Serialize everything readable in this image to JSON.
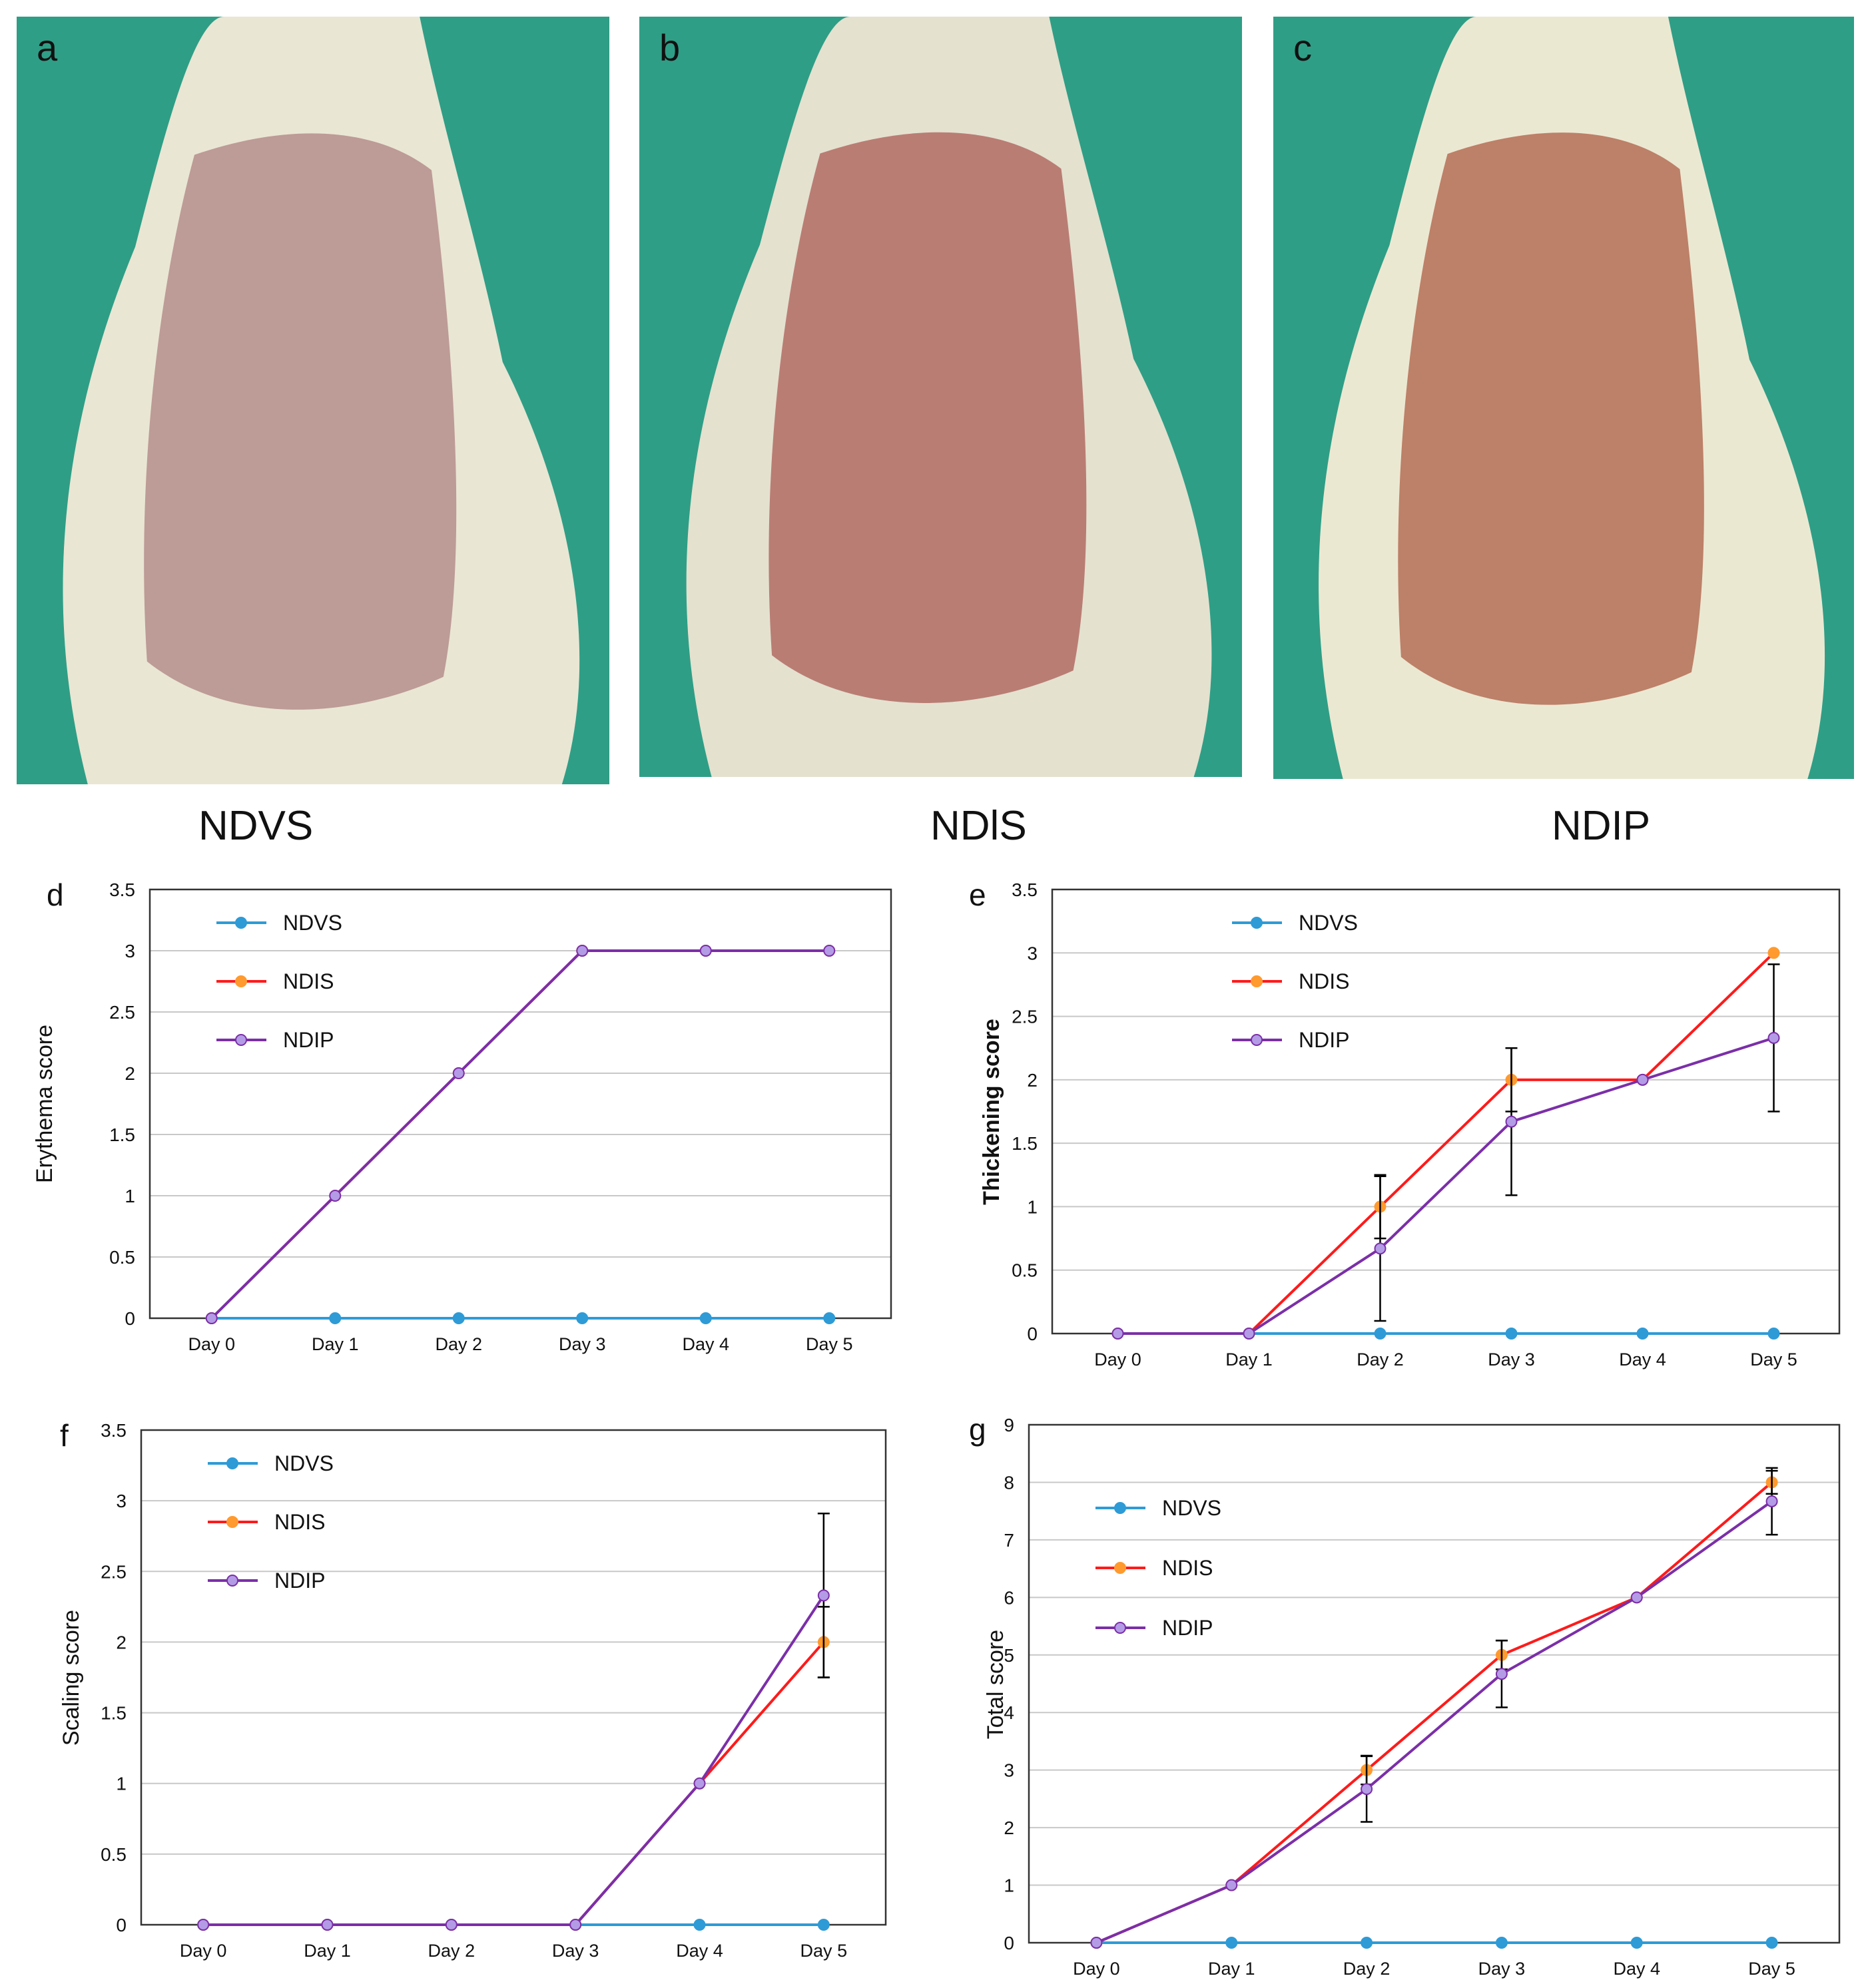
{
  "photos": [
    {
      "letter": "a",
      "fur": "#e9e6d4",
      "skin": "#b99590",
      "bg": "#2f9e86"
    },
    {
      "letter": "b",
      "fur": "#e4e1cf",
      "skin": "#b5746d",
      "bg": "#2f9e86"
    },
    {
      "letter": "c",
      "fur": "#ebe8d2",
      "skin": "#b8765e",
      "bg": "#2f9e86"
    }
  ],
  "group_labels": [
    "NDVS",
    "NDlS",
    "NDIP"
  ],
  "colors": {
    "ndvs": "#2e9bd6",
    "ndis_line": "#ff1a1a",
    "ndis_marker": "#ff9a2e",
    "ndip": "#7b2fa8",
    "ndip_marker": "#b49be6",
    "grid": "#c8c8c8",
    "axis": "#000000"
  },
  "chart_data": [
    {
      "panel": "d",
      "type": "line",
      "ylabel": "Erythema score",
      "ylim": [
        0,
        3.5
      ],
      "yticks": [
        "0",
        "0.5",
        "1",
        "1.5",
        "2",
        "2.5",
        "3",
        "3.5"
      ],
      "categories": [
        "Day 0",
        "Day 1",
        "Day 2",
        "Day 3",
        "Day 4",
        "Day 5"
      ],
      "legend": "top-left",
      "series": [
        {
          "name": "NDVS",
          "values": [
            0,
            0,
            0,
            0,
            0,
            0
          ],
          "err": [
            0,
            0,
            0,
            0,
            0,
            0
          ]
        },
        {
          "name": "NDIS",
          "values": [
            0,
            1,
            2,
            3,
            3,
            3
          ],
          "err": [
            0,
            0,
            0,
            0,
            0,
            0
          ]
        },
        {
          "name": "NDIP",
          "values": [
            0,
            1,
            2,
            3,
            3,
            3
          ],
          "err": [
            0,
            0,
            0,
            0,
            0,
            0
          ]
        }
      ]
    },
    {
      "panel": "e",
      "type": "line",
      "ylabel": "Thickening score",
      "ylim": [
        0,
        3.5
      ],
      "yticks": [
        "0",
        "0.5",
        "1",
        "1.5",
        "2",
        "2.5",
        "3",
        "3.5"
      ],
      "categories": [
        "Day 0",
        "Day 1",
        "Day 2",
        "Day 3",
        "Day 4",
        "Day 5"
      ],
      "legend": "top-left",
      "series": [
        {
          "name": "NDVS",
          "values": [
            0,
            0,
            0,
            0,
            0,
            0
          ],
          "err": [
            0,
            0,
            0,
            0,
            0,
            0
          ]
        },
        {
          "name": "NDIS",
          "values": [
            0,
            0,
            1,
            2,
            2,
            3
          ],
          "err": [
            0,
            0,
            0.25,
            0.25,
            0,
            0
          ]
        },
        {
          "name": "NDIP",
          "values": [
            0,
            0,
            0.67,
            1.67,
            2,
            2.33
          ],
          "err": [
            0,
            0,
            0.57,
            0.58,
            0,
            0.58
          ]
        }
      ]
    },
    {
      "panel": "f",
      "type": "line",
      "ylabel": "Scaling score",
      "ylim": [
        0,
        3.5
      ],
      "yticks": [
        "0",
        "0.5",
        "1",
        "1.5",
        "2",
        "2.5",
        "3",
        "3.5"
      ],
      "categories": [
        "Day 0",
        "Day 1",
        "Day 2",
        "Day 3",
        "Day 4",
        "Day 5"
      ],
      "legend": "top-left",
      "series": [
        {
          "name": "NDVS",
          "values": [
            0,
            0,
            0,
            0,
            0,
            0
          ],
          "err": [
            0,
            0,
            0,
            0,
            0,
            0
          ]
        },
        {
          "name": "NDIS",
          "values": [
            0,
            0,
            0,
            0,
            1,
            2
          ],
          "err": [
            0,
            0,
            0,
            0,
            0,
            0.25
          ]
        },
        {
          "name": "NDIP",
          "values": [
            0,
            0,
            0,
            0,
            1,
            2.33
          ],
          "err": [
            0,
            0,
            0,
            0,
            0,
            0.58
          ]
        }
      ]
    },
    {
      "panel": "g",
      "type": "line",
      "ylabel": "Total score",
      "ylim": [
        0,
        9
      ],
      "yticks": [
        "0",
        "1",
        "2",
        "3",
        "4",
        "5",
        "6",
        "7",
        "8",
        "9"
      ],
      "categories": [
        "Day 0",
        "Day 1",
        "Day 2",
        "Day 3",
        "Day 4",
        "Day 5"
      ],
      "legend": "top-left",
      "series": [
        {
          "name": "NDVS",
          "values": [
            0,
            0,
            0,
            0,
            0,
            0
          ],
          "err": [
            0,
            0,
            0,
            0,
            0,
            0
          ]
        },
        {
          "name": "NDIS",
          "values": [
            0,
            1,
            3,
            5,
            6,
            8
          ],
          "err": [
            0,
            0,
            0.25,
            0.25,
            0,
            0.2
          ]
        },
        {
          "name": "NDIP",
          "values": [
            0,
            1,
            2.67,
            4.67,
            6,
            7.67
          ],
          "err": [
            0,
            0,
            0.57,
            0.58,
            0,
            0.58
          ]
        }
      ]
    }
  ]
}
